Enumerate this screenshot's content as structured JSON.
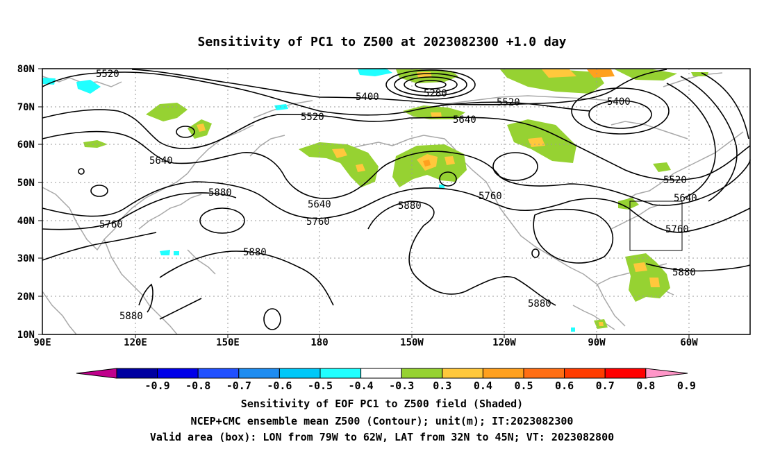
{
  "title": "Sensitivity of PC1 to Z500 at 2023082300 +1.0 day",
  "lat_labels": [
    "80N",
    "70N",
    "60N",
    "50N",
    "40N",
    "30N",
    "20N",
    "10N"
  ],
  "lon_labels": [
    "90E",
    "120E",
    "150E",
    "180",
    "150W",
    "120W",
    "90W",
    "60W"
  ],
  "contour_labels": [
    "5520",
    "5400",
    "5280",
    "5520",
    "5400",
    "5520",
    "5640",
    "5640",
    "5880",
    "5640",
    "5760",
    "5760",
    "5880",
    "5760",
    "5520",
    "5640",
    "5760",
    "5880",
    "5880",
    "5880",
    "5880"
  ],
  "colorbar": {
    "labels": [
      "-0.9",
      "-0.8",
      "-0.7",
      "-0.6",
      "-0.5",
      "-0.4",
      "-0.3",
      "0.3",
      "0.4",
      "0.5",
      "0.6",
      "0.7",
      "0.8",
      "0.9"
    ],
    "colors": [
      "#c0008c",
      "#0000a0",
      "#0000e8",
      "#2050ff",
      "#1e8cf0",
      "#00c8f8",
      "#20ffff",
      "#ffffff",
      "#96d232",
      "#ffc83c",
      "#ffa01e",
      "#ff6e14",
      "#ff3c00",
      "#ff0000",
      "#ff96c8"
    ]
  },
  "captions": [
    "Sensitivity of EOF PC1 to Z500 field (Shaded)",
    "NCEP+CMC ensemble mean Z500 (Contour); unit(m); IT:2023082300",
    "Valid area (box): LON from 79W to 62W, LAT from 32N to 45N; VT: 2023082800"
  ]
}
